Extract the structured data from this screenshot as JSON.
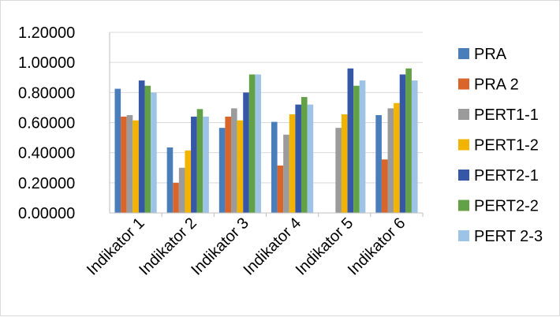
{
  "chart_data": {
    "type": "bar",
    "title": "",
    "xlabel": "",
    "ylabel": "",
    "categories": [
      "Indikator 1",
      "Indikator 2",
      "Indikator 3",
      "Indikator 4",
      "Indikator 5",
      "Indikator 6"
    ],
    "ylim": [
      0,
      1.2
    ],
    "yticks": [
      "0.00000",
      "0.20000",
      "0.40000",
      "0.60000",
      "0.80000",
      "1.00000",
      "1.20000"
    ],
    "grid": "horizontal",
    "legend_position": "right",
    "series": [
      {
        "name": "PRA",
        "color": "#4a7ebb",
        "values": [
          0.825,
          0.435,
          0.565,
          0.605,
          null,
          0.65
        ]
      },
      {
        "name": "PRA 2",
        "color": "#d9652b",
        "values": [
          0.64,
          0.2,
          0.64,
          0.315,
          null,
          0.355
        ]
      },
      {
        "name": "PERT1-1",
        "color": "#9b9b9b",
        "values": [
          0.65,
          0.3,
          0.695,
          0.52,
          0.565,
          0.695
        ]
      },
      {
        "name": "PERT1-2",
        "color": "#f2b400",
        "values": [
          0.615,
          0.415,
          0.615,
          0.655,
          0.655,
          0.73
        ]
      },
      {
        "name": "PERT2-1",
        "color": "#3656a6",
        "values": [
          0.88,
          0.64,
          0.8,
          0.72,
          0.96,
          0.92
        ]
      },
      {
        "name": "PERT2-2",
        "color": "#62a146",
        "values": [
          0.845,
          0.69,
          0.92,
          0.77,
          0.845,
          0.96
        ]
      },
      {
        "name": "PERT 2-3",
        "color": "#9dc3e6",
        "values": [
          0.8,
          0.64,
          0.92,
          0.72,
          0.88,
          0.88
        ]
      }
    ]
  }
}
